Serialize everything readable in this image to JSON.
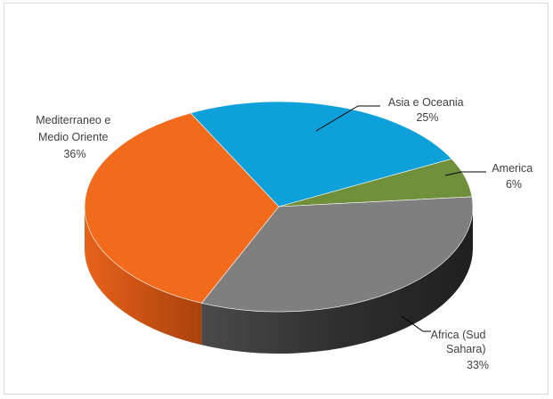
{
  "chart_data": {
    "type": "pie",
    "title": "",
    "style": "3d",
    "slices": [
      {
        "label_lines": [
          "Asia e Oceania"
        ],
        "percent_label": "25%",
        "value": 25,
        "color": "#0ea1d9"
      },
      {
        "label_lines": [
          "America"
        ],
        "percent_label": "6%",
        "value": 6,
        "color": "#6f8f3a"
      },
      {
        "label_lines": [
          "Africa (Sud",
          "Sahara)"
        ],
        "percent_label": "33%",
        "value": 33,
        "color": "#7f7f7f"
      },
      {
        "label_lines": [
          "Mediterraneo e",
          "Medio Oriente"
        ],
        "percent_label": "36%",
        "value": 36,
        "color": "#f26a1b"
      }
    ]
  }
}
